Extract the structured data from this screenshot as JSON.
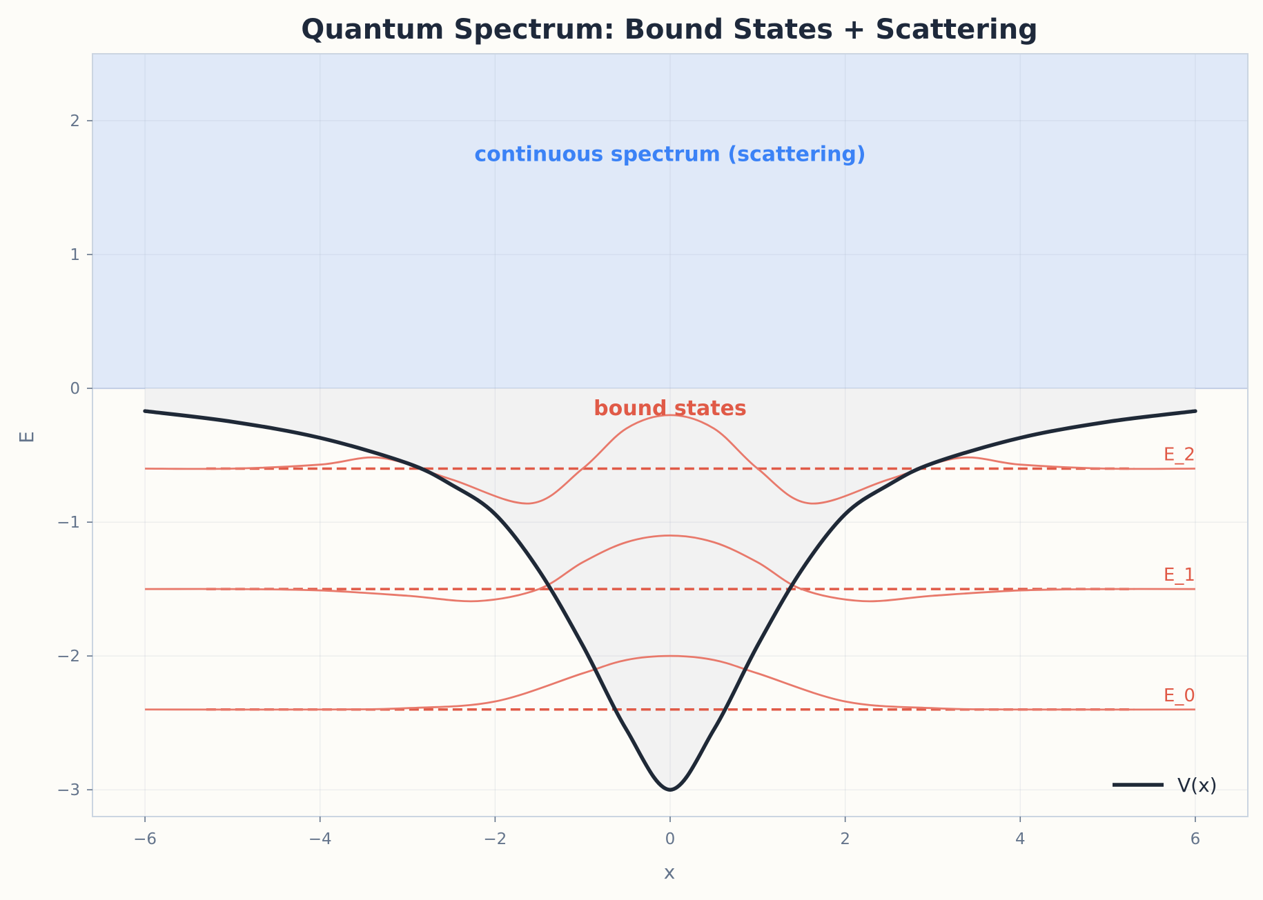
{
  "chart_data": {
    "type": "line",
    "title": "Quantum Spectrum: Bound States + Scattering",
    "xlabel": "x",
    "ylabel": "E",
    "xlim": [
      -6.6,
      6.6
    ],
    "ylim": [
      -3.2,
      2.5
    ],
    "xticks": [
      -6,
      -4,
      -2,
      0,
      2,
      4,
      6
    ],
    "yticks": [
      -3,
      -2,
      -1,
      0,
      1,
      2
    ],
    "grid": true,
    "legend_position": "bottom-right",
    "colors": {
      "potential": "#1f2937",
      "levels": "#e05a47",
      "wavefunctions": "#e8796b",
      "continuum_fill": "#e0e9f8",
      "well_fill": "#f2f2f2",
      "continuum_text": "#3b82f6",
      "bound_text": "#e05a47"
    },
    "potential": {
      "name": "V(x)",
      "depth": -3,
      "x": [
        -6,
        -5,
        -4,
        -3,
        -2.5,
        -2,
        -1.5,
        -1,
        -0.5,
        0,
        0.5,
        1,
        1.5,
        2,
        2.5,
        3,
        4,
        5,
        6
      ],
      "y": [
        -0.17,
        -0.25,
        -0.37,
        -0.56,
        -0.72,
        -0.94,
        -1.36,
        -1.92,
        -2.55,
        -3.0,
        -2.55,
        -1.92,
        -1.36,
        -0.94,
        -0.72,
        -0.56,
        -0.37,
        -0.25,
        -0.17
      ]
    },
    "levels": [
      {
        "label": "E_0",
        "energy": -2.4,
        "x_range": [
          -5.3,
          5.3
        ]
      },
      {
        "label": "E_1",
        "energy": -1.5,
        "x_range": [
          -5.3,
          5.3
        ]
      },
      {
        "label": "E_2",
        "energy": -0.6,
        "x_range": [
          -5.3,
          5.3
        ]
      }
    ],
    "wavefunctions": [
      {
        "level": "E_0",
        "x": [
          -6,
          -4,
          -3,
          -2,
          -1,
          -0.5,
          0,
          0.5,
          1,
          2,
          3,
          4,
          6
        ],
        "y": [
          -2.4,
          -2.4,
          -2.39,
          -2.34,
          -2.13,
          -2.03,
          -2.0,
          -2.03,
          -2.13,
          -2.34,
          -2.39,
          -2.4,
          -2.4
        ]
      },
      {
        "level": "E_1",
        "x": [
          -6,
          -5,
          -4,
          -3,
          -2.2,
          -1.5,
          -1,
          -0.5,
          0,
          0.5,
          1,
          1.5,
          2.2,
          3,
          4,
          5,
          6
        ],
        "y": [
          -1.5,
          -1.5,
          -1.51,
          -1.55,
          -1.59,
          -1.5,
          -1.3,
          -1.15,
          -1.1,
          -1.15,
          -1.3,
          -1.5,
          -1.59,
          -1.55,
          -1.51,
          -1.5,
          -1.5
        ]
      },
      {
        "level": "E_2",
        "x": [
          -6,
          -5,
          -4,
          -3.3,
          -2.5,
          -1.6,
          -1,
          -0.5,
          0,
          0.5,
          1,
          1.6,
          2.5,
          3.3,
          4,
          5,
          6
        ],
        "y": [
          -0.6,
          -0.6,
          -0.57,
          -0.52,
          -0.68,
          -0.86,
          -0.6,
          -0.3,
          -0.2,
          -0.3,
          -0.6,
          -0.86,
          -0.68,
          -0.52,
          -0.57,
          -0.6,
          -0.6
        ]
      }
    ],
    "regions": [
      {
        "name": "continuum",
        "y_range": [
          0,
          2.5
        ],
        "x_range": [
          -6.6,
          6.6
        ]
      }
    ],
    "annotations": [
      {
        "text": "continuous spectrum (scattering)",
        "x": 0,
        "y": 1.75,
        "style": "blue"
      },
      {
        "text": "bound states",
        "x": 0,
        "y": -0.15,
        "style": "red"
      }
    ],
    "legend": [
      {
        "label": "V(x)"
      }
    ]
  }
}
